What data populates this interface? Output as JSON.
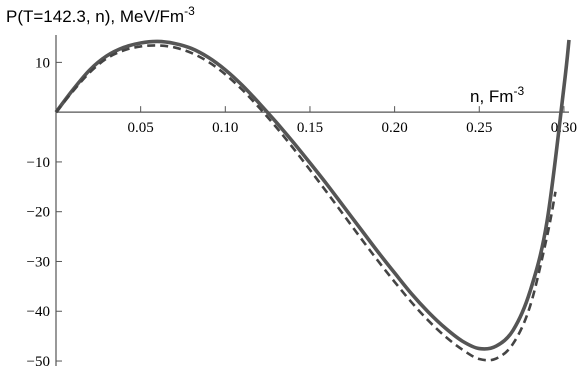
{
  "chart_data": {
    "type": "line",
    "title": "",
    "ylabel": "P(T=142.3, n), MeV/Fm",
    "ylabel_exponent": "-3",
    "xlabel": "n, Fm",
    "xlabel_exponent": "-3",
    "xlim": [
      0,
      0.303
    ],
    "ylim": [
      -51,
      15.5
    ],
    "x_ticks": [
      0.05,
      0.1,
      0.15,
      0.2,
      0.25,
      0.3
    ],
    "x_tick_labels": [
      "0.05",
      "0.10",
      "0.15",
      "0.20",
      "0.25",
      "0.30"
    ],
    "y_ticks": [
      10,
      -10,
      -20,
      -30,
      -40,
      -50
    ],
    "y_tick_labels": [
      "10",
      "−10",
      "−20",
      "−30",
      "−40",
      "−50"
    ],
    "grid": false,
    "series": [
      {
        "style": "solid",
        "color": "#555555",
        "x": [
          0,
          0.01,
          0.02,
          0.03,
          0.04,
          0.05,
          0.06,
          0.07,
          0.08,
          0.09,
          0.1,
          0.11,
          0.12,
          0.13,
          0.14,
          0.15,
          0.16,
          0.17,
          0.18,
          0.19,
          0.2,
          0.21,
          0.22,
          0.23,
          0.24,
          0.25,
          0.26,
          0.27,
          0.28,
          0.29,
          0.3,
          0.303
        ],
        "y": [
          0,
          4.5,
          8.5,
          11.3,
          13.0,
          13.9,
          14.2,
          13.8,
          12.8,
          11.0,
          8.5,
          5.4,
          1.8,
          -2.0,
          -6.0,
          -10.2,
          -14.5,
          -19.0,
          -23.5,
          -28.0,
          -32.3,
          -36.5,
          -40.2,
          -43.4,
          -46.0,
          -47.5,
          -47.0,
          -43.8,
          -36.0,
          -22.0,
          5.0,
          14.5
        ]
      },
      {
        "style": "dashed",
        "color": "#444444",
        "x": [
          0,
          0.01,
          0.02,
          0.03,
          0.04,
          0.05,
          0.06,
          0.07,
          0.08,
          0.09,
          0.1,
          0.11,
          0.12,
          0.13,
          0.14,
          0.15,
          0.16,
          0.17,
          0.18,
          0.19,
          0.2,
          0.21,
          0.22,
          0.23,
          0.24,
          0.25,
          0.26,
          0.27,
          0.28,
          0.29,
          0.295
        ],
        "y": [
          0,
          4.2,
          8.0,
          10.8,
          12.4,
          13.2,
          13.4,
          13.0,
          11.9,
          10.1,
          7.6,
          4.5,
          0.9,
          -3.0,
          -7.2,
          -11.6,
          -16.1,
          -20.7,
          -25.3,
          -29.8,
          -34.1,
          -38.2,
          -41.9,
          -45.1,
          -47.7,
          -49.6,
          -49.5,
          -46.5,
          -39.0,
          -25.0,
          -16.0
        ]
      }
    ]
  }
}
